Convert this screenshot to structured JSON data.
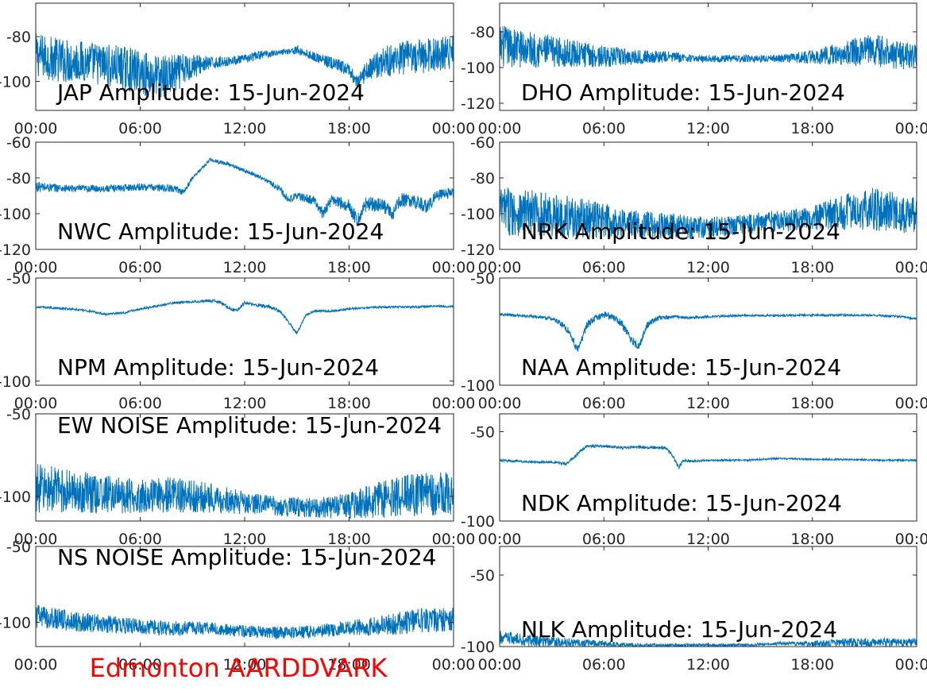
{
  "figure": {
    "footer_text": "Edmonton AARDDVARK",
    "footer_color": "#ff0000",
    "line_color": "#0072bd"
  },
  "chart_data": [
    {
      "type": "line",
      "title": "JAP Amplitude: 15-Jun-2024",
      "x_ticks": [
        "00:00",
        "06:00",
        "12:00",
        "18:00",
        "00:00"
      ],
      "xlim": [
        "00:00",
        "24:00"
      ],
      "ylim": [
        -113,
        -65
      ],
      "y_ticks": [
        -80,
        -100
      ],
      "y_tick_labels": [
        "-80",
        "-100"
      ],
      "series": [
        {
          "x_hours": [
            0,
            1,
            2,
            3,
            4,
            5,
            6,
            7,
            8,
            9,
            10,
            11,
            12,
            13,
            14,
            15,
            16,
            17,
            18,
            18.5,
            19,
            20,
            21,
            22,
            23,
            24
          ],
          "y": [
            -88,
            -90,
            -91,
            -91,
            -93,
            -94,
            -96,
            -98,
            -97,
            -93,
            -92,
            -91,
            -90,
            -88,
            -87,
            -86,
            -89,
            -92,
            -95,
            -101,
            -95,
            -91,
            -90,
            -89,
            -88,
            -87
          ],
          "noise_amplitude": [
            10,
            10,
            10,
            9,
            10,
            10,
            10,
            10,
            9,
            6,
            3,
            2,
            2,
            2,
            1,
            2,
            2,
            3,
            3,
            3,
            5,
            7,
            8,
            8,
            8,
            8
          ]
        }
      ]
    },
    {
      "type": "line",
      "title": "DHO Amplitude: 15-Jun-2024",
      "x_ticks": [
        "00:00",
        "06:00",
        "12:00",
        "18:00",
        "00:00"
      ],
      "xlim": [
        "00:00",
        "24:00"
      ],
      "ylim": [
        -124,
        -64
      ],
      "y_ticks": [
        -80,
        -100,
        -120
      ],
      "y_tick_labels": [
        "-80",
        "-100",
        "-120"
      ],
      "series": [
        {
          "x_hours": [
            0,
            2,
            4,
            6,
            8,
            10,
            11,
            12,
            14,
            16,
            18,
            20,
            21,
            22,
            23,
            24
          ],
          "y": [
            -88,
            -90,
            -92,
            -94,
            -94,
            -94,
            -95,
            -95,
            -95,
            -95,
            -94,
            -92,
            -90,
            -91,
            -93,
            -94
          ],
          "noise_amplitude": [
            12,
            10,
            8,
            6,
            4,
            3,
            2,
            2,
            2,
            2,
            4,
            7,
            9,
            9,
            8,
            7
          ]
        }
      ]
    },
    {
      "type": "line",
      "title": "NWC Amplitude: 15-Jun-2024",
      "x_ticks": [
        "00:00",
        "06:00",
        "12:00",
        "18:00",
        "00:00"
      ],
      "xlim": [
        "00:00",
        "24:00"
      ],
      "ylim": [
        -120,
        -60
      ],
      "y_ticks": [
        -60,
        -80,
        -100,
        -120
      ],
      "y_tick_labels": [
        "-60",
        "-80",
        "-100",
        "-120"
      ],
      "series": [
        {
          "x_hours": [
            0,
            2,
            4,
            6,
            8,
            8.5,
            9,
            10,
            11,
            12,
            13,
            14,
            14.5,
            15,
            16,
            16.5,
            17,
            18,
            18.5,
            19,
            20,
            20.5,
            21,
            22,
            22.5,
            23,
            24
          ],
          "y": [
            -85,
            -86,
            -86,
            -85,
            -86,
            -88,
            -80,
            -70,
            -72,
            -76,
            -80,
            -86,
            -92,
            -90,
            -93,
            -100,
            -92,
            -96,
            -104,
            -94,
            -96,
            -100,
            -92,
            -94,
            -96,
            -90,
            -88
          ],
          "noise_amplitude": [
            3,
            2,
            2,
            2,
            2,
            2,
            1,
            1,
            1,
            1,
            1,
            2,
            2,
            2,
            3,
            3,
            3,
            4,
            4,
            4,
            4,
            4,
            4,
            4,
            4,
            3,
            3
          ]
        }
      ]
    },
    {
      "type": "line",
      "title": "NRK Amplitude: 15-Jun-2024",
      "x_ticks": [
        "00:00",
        "06:00",
        "12:00",
        "18:00",
        "00:00"
      ],
      "xlim": [
        "00:00",
        "24:00"
      ],
      "ylim": [
        -120,
        -60
      ],
      "y_ticks": [
        -60,
        -80,
        -100,
        -120
      ],
      "y_tick_labels": [
        "-60",
        "-80",
        "-100",
        "-120"
      ],
      "series": [
        {
          "x_hours": [
            0,
            2,
            4,
            6,
            8,
            10,
            12,
            14,
            16,
            18,
            20,
            21,
            22,
            23,
            24
          ],
          "y": [
            -98,
            -100,
            -102,
            -104,
            -106,
            -107,
            -108,
            -106,
            -104,
            -103,
            -99,
            -97,
            -98,
            -100,
            -101
          ],
          "noise_amplitude": [
            14,
            13,
            12,
            10,
            8,
            7,
            6,
            6,
            6,
            7,
            11,
            12,
            12,
            11,
            10
          ]
        }
      ]
    },
    {
      "type": "line",
      "title": "NPM Amplitude: 15-Jun-2024",
      "x_ticks": [
        "00:00",
        "06:00",
        "12:00",
        "18:00",
        "00:00"
      ],
      "xlim": [
        "00:00",
        "24:00"
      ],
      "ylim": [
        -102,
        -50
      ],
      "y_ticks": [
        -50,
        -100
      ],
      "y_tick_labels": [
        "-50",
        "-100"
      ],
      "series": [
        {
          "x_hours": [
            0,
            1,
            2,
            3,
            4,
            5,
            6,
            7,
            8,
            9,
            10,
            10.5,
            11,
            11.5,
            12,
            12.5,
            13,
            13.5,
            14,
            14.5,
            15,
            15.5,
            16,
            17,
            18,
            19,
            20,
            21,
            22,
            23,
            24
          ],
          "y": [
            -64,
            -64.5,
            -65,
            -66,
            -67.5,
            -67,
            -65,
            -63.5,
            -62,
            -61.5,
            -61,
            -61.5,
            -64,
            -66,
            -62,
            -63,
            -63.5,
            -64,
            -66,
            -71,
            -77,
            -68,
            -66,
            -66,
            -65,
            -64.5,
            -64,
            -64,
            -64,
            -63.5,
            -64
          ],
          "noise_amplitude": [
            0.5,
            0.5,
            0.5,
            0.5,
            0.5,
            0.5,
            0.5,
            0.5,
            0.5,
            0.5,
            0.8,
            0.8,
            0.8,
            0.8,
            0.8,
            0.8,
            0.8,
            0.8,
            0.8,
            0.8,
            0.8,
            0.5,
            0.5,
            0.5,
            0.5,
            0.5,
            0.5,
            0.5,
            0.5,
            0.5,
            0.5
          ]
        }
      ]
    },
    {
      "type": "line",
      "title": "NAA Amplitude: 15-Jun-2024",
      "x_ticks": [
        "00:00",
        "06:00",
        "12:00",
        "18:00",
        "00:00"
      ],
      "xlim": [
        "00:00",
        "24:00"
      ],
      "ylim": [
        -100,
        -50
      ],
      "y_ticks": [
        -50,
        -100
      ],
      "y_tick_labels": [
        "-50",
        "-100"
      ],
      "series": [
        {
          "x_hours": [
            0,
            1,
            2,
            3,
            3.5,
            4,
            4.5,
            5,
            5.5,
            6,
            6.5,
            7,
            7.5,
            8,
            8.5,
            9,
            10,
            11,
            12,
            14,
            16,
            18,
            20,
            22,
            23,
            24
          ],
          "y": [
            -67,
            -67.5,
            -68,
            -69,
            -71,
            -75,
            -84,
            -72,
            -69,
            -67,
            -68,
            -71,
            -78,
            -82,
            -72,
            -69,
            -68,
            -68.5,
            -68,
            -67.5,
            -67.5,
            -67.3,
            -67.3,
            -67.5,
            -68,
            -69
          ],
          "noise_amplitude": [
            0.6,
            0.6,
            0.6,
            0.8,
            1.5,
            2,
            2,
            2,
            1.5,
            1.5,
            1.5,
            2,
            2,
            2,
            1.5,
            1.2,
            0.8,
            0.6,
            0.5,
            0.5,
            0.5,
            0.5,
            0.5,
            0.5,
            0.5,
            0.5
          ]
        }
      ]
    },
    {
      "type": "line",
      "title": "EW NOISE Amplitude: 15-Jun-2024",
      "x_ticks": [
        "00:00",
        "06:00",
        "12:00",
        "18:00",
        "00:00"
      ],
      "xlim": [
        "00:00",
        "24:00"
      ],
      "ylim": [
        -115,
        -50
      ],
      "y_ticks": [
        -50,
        -100
      ],
      "y_tick_labels": [
        "-50",
        "-100"
      ],
      "series": [
        {
          "x_hours": [
            0,
            2,
            4,
            6,
            8,
            10,
            12,
            14,
            16,
            18,
            20,
            22,
            24
          ],
          "y": [
            -95,
            -97,
            -99,
            -100,
            -99,
            -101,
            -104,
            -106,
            -107,
            -106,
            -101,
            -99,
            -98
          ],
          "noise_amplitude": [
            15,
            13,
            12,
            10,
            11,
            9,
            7,
            6,
            6,
            8,
            12,
            13,
            13
          ]
        }
      ]
    },
    {
      "type": "line",
      "title": "NDK Amplitude: 15-Jun-2024",
      "x_ticks": [
        "00:00",
        "06:00",
        "12:00",
        "18:00",
        "00:00"
      ],
      "xlim": [
        "00:00",
        "24:00"
      ],
      "ylim": [
        -100,
        -40
      ],
      "y_ticks": [
        -50,
        -100
      ],
      "y_tick_labels": [
        "-50",
        "-100"
      ],
      "series": [
        {
          "x_hours": [
            0,
            1,
            2,
            3,
            3.8,
            4.2,
            5,
            6,
            7,
            8,
            9,
            9.6,
            10,
            10.3,
            10.6,
            11,
            12,
            14,
            16,
            18,
            20,
            22,
            23,
            24
          ],
          "y": [
            -66,
            -66.5,
            -67,
            -67,
            -68,
            -65,
            -58,
            -58,
            -59,
            -58.5,
            -59,
            -59,
            -64,
            -70,
            -66,
            -66.5,
            -66,
            -66,
            -65,
            -65.5,
            -65.5,
            -66,
            -66,
            -66
          ],
          "noise_amplitude": [
            0.6,
            0.6,
            0.6,
            0.6,
            0.8,
            0.8,
            0.8,
            0.8,
            0.8,
            0.8,
            0.8,
            0.8,
            1,
            1,
            0.8,
            0.6,
            0.5,
            0.5,
            0.5,
            0.5,
            0.5,
            0.5,
            0.5,
            0.5
          ]
        }
      ]
    },
    {
      "type": "line",
      "title": "NS NOISE Amplitude: 15-Jun-2024",
      "x_ticks": [
        "00:00",
        "06:00",
        "12:00",
        "18:00",
        "00:00"
      ],
      "xlim": [
        "00:00",
        "24:00"
      ],
      "ylim": [
        -116,
        -50
      ],
      "y_ticks": [
        -50,
        -100
      ],
      "y_tick_labels": [
        "-50",
        "-100"
      ],
      "series": [
        {
          "x_hours": [
            0,
            2,
            4,
            6,
            8,
            10,
            12,
            14,
            16,
            18,
            20,
            22,
            24
          ],
          "y": [
            -96,
            -99,
            -101,
            -103,
            -104,
            -104,
            -106,
            -107,
            -106,
            -104,
            -102,
            -99,
            -98
          ],
          "noise_amplitude": [
            8,
            7,
            6,
            5,
            5,
            4,
            4,
            4,
            4,
            5,
            7,
            8,
            8
          ]
        }
      ]
    },
    {
      "type": "line",
      "title": "NLK Amplitude: 15-Jun-2024",
      "x_ticks": [
        "00:00",
        "06:00",
        "12:00",
        "18:00",
        "00:00"
      ],
      "xlim": [
        "00:00",
        "24:00"
      ],
      "ylim": [
        -100,
        -30
      ],
      "y_ticks": [
        -50,
        -100
      ],
      "y_tick_labels": [
        "-50",
        "-100"
      ],
      "series": [
        {
          "x_hours": [
            0,
            2,
            4,
            6,
            8,
            10,
            12,
            14,
            16,
            18,
            20,
            22,
            24
          ],
          "y": [
            -94,
            -96,
            -97,
            -98,
            -99,
            -99,
            -99,
            -99,
            -98,
            -98,
            -97,
            -97,
            -97
          ],
          "noise_amplitude": [
            5,
            4,
            3,
            2,
            1,
            1,
            1,
            1,
            1,
            2,
            3,
            3,
            3
          ]
        }
      ]
    }
  ]
}
